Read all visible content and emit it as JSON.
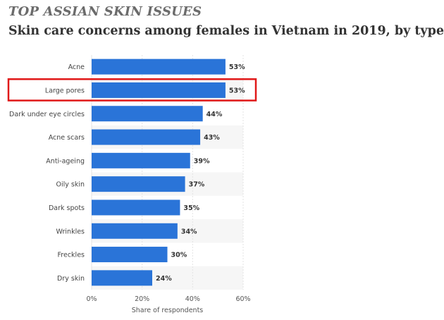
{
  "header": {
    "kicker": "TOP ASSIAN SKIN ISSUES",
    "title": "Skin care concerns among females in Vietnam in 2019, by type"
  },
  "chart_data": {
    "type": "bar",
    "orientation": "horizontal",
    "categories": [
      "Acne",
      "Large pores",
      "Dark under eye circles",
      "Acne scars",
      "Anti-ageing",
      "Oily skin",
      "Dark spots",
      "Wrinkles",
      "Freckles",
      "Dry skin"
    ],
    "values": [
      53,
      53,
      44,
      43,
      39,
      37,
      35,
      34,
      30,
      24
    ],
    "value_labels": [
      "53%",
      "53%",
      "44%",
      "43%",
      "39%",
      "37%",
      "35%",
      "34%",
      "30%",
      "24%"
    ],
    "xlabel": "Share of respondents",
    "ylabel": "",
    "xlim": [
      0,
      60
    ],
    "xticks": [
      0,
      20,
      40,
      60
    ],
    "xtick_labels": [
      "0%",
      "20%",
      "40%",
      "60%"
    ],
    "grid": true,
    "bar_color": "#2a74d8",
    "highlight": {
      "category": "Large pores",
      "color": "#e01818"
    }
  }
}
